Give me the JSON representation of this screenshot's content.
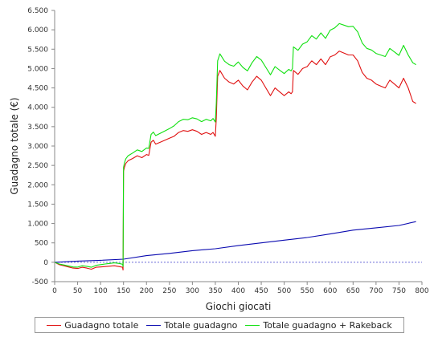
{
  "chart_data": {
    "type": "line",
    "title": "",
    "xlabel": "Giochi giocati",
    "ylabel": "Guadagno totale  (€)",
    "xlim": [
      0,
      800
    ],
    "ylim": [
      -500,
      6500
    ],
    "x_ticks": [
      0,
      50,
      100,
      150,
      200,
      250,
      300,
      350,
      400,
      450,
      500,
      550,
      600,
      650,
      700,
      750,
      800
    ],
    "x_tick_labels": [
      "0",
      "50",
      "100",
      "150",
      "200",
      "250",
      "300",
      "350",
      "400",
      "450",
      "500",
      "550",
      "600",
      "650",
      "700",
      "750",
      "800"
    ],
    "y_ticks": [
      -500,
      0,
      500,
      1000,
      1500,
      2000,
      2500,
      3000,
      3500,
      4000,
      4500,
      5000,
      5500,
      6000,
      6500
    ],
    "y_tick_labels": [
      "-500",
      "0",
      "500",
      "1.000",
      "1.500",
      "2.000",
      "2.500",
      "3.000",
      "3.500",
      "4.000",
      "4.500",
      "5.000",
      "5.500",
      "6.000",
      "6.500"
    ],
    "zero_line": true,
    "grid": false,
    "legend_position": "bottom",
    "series": [
      {
        "name": "Guadagno totale",
        "color": "#e01010",
        "x": [
          0,
          10,
          20,
          30,
          40,
          50,
          60,
          70,
          80,
          90,
          100,
          110,
          120,
          130,
          140,
          148,
          149,
          150,
          152,
          155,
          160,
          170,
          180,
          190,
          200,
          205,
          210,
          215,
          220,
          230,
          240,
          250,
          260,
          270,
          280,
          290,
          300,
          310,
          320,
          330,
          340,
          345,
          350,
          352,
          355,
          360,
          370,
          380,
          390,
          400,
          410,
          420,
          430,
          440,
          450,
          460,
          470,
          480,
          490,
          500,
          510,
          515,
          518,
          520,
          530,
          540,
          550,
          560,
          570,
          580,
          590,
          600,
          610,
          620,
          630,
          640,
          650,
          660,
          670,
          680,
          690,
          700,
          710,
          720,
          730,
          740,
          750,
          760,
          770,
          780,
          787
        ],
        "y": [
          0,
          -60,
          -90,
          -120,
          -150,
          -160,
          -130,
          -150,
          -180,
          -130,
          -120,
          -110,
          -100,
          -90,
          -110,
          -130,
          -200,
          2350,
          2450,
          2550,
          2620,
          2680,
          2750,
          2700,
          2780,
          2760,
          3100,
          3150,
          3050,
          3100,
          3150,
          3200,
          3250,
          3350,
          3400,
          3380,
          3420,
          3380,
          3300,
          3350,
          3300,
          3350,
          3250,
          3700,
          4800,
          4950,
          4750,
          4650,
          4600,
          4700,
          4550,
          4450,
          4650,
          4800,
          4700,
          4500,
          4300,
          4500,
          4400,
          4300,
          4400,
          4350,
          4400,
          4950,
          4850,
          5000,
          5050,
          5200,
          5100,
          5250,
          5100,
          5300,
          5350,
          5450,
          5400,
          5350,
          5350,
          5200,
          4900,
          4750,
          4700,
          4600,
          4550,
          4500,
          4700,
          4600,
          4500,
          4750,
          4500,
          4150,
          4100
        ]
      },
      {
        "name": "Totale guadagno",
        "color": "#0a0ab0",
        "x": [
          0,
          50,
          100,
          150,
          200,
          250,
          300,
          350,
          400,
          450,
          500,
          550,
          600,
          650,
          700,
          750,
          787
        ],
        "y": [
          0,
          30,
          50,
          80,
          170,
          230,
          300,
          350,
          430,
          500,
          570,
          640,
          730,
          830,
          890,
          950,
          1050
        ]
      },
      {
        "name": "Totale guadagno + Rakeback",
        "color": "#10e010",
        "x": [
          0,
          10,
          20,
          30,
          40,
          50,
          60,
          70,
          80,
          90,
          100,
          110,
          120,
          130,
          140,
          148,
          149,
          150,
          152,
          155,
          160,
          170,
          180,
          190,
          200,
          205,
          210,
          215,
          220,
          230,
          240,
          250,
          260,
          270,
          280,
          290,
          300,
          310,
          320,
          330,
          340,
          345,
          350,
          352,
          355,
          360,
          370,
          380,
          390,
          400,
          410,
          420,
          430,
          440,
          450,
          460,
          470,
          480,
          490,
          500,
          510,
          515,
          518,
          520,
          530,
          540,
          550,
          560,
          570,
          580,
          590,
          600,
          610,
          620,
          630,
          640,
          650,
          660,
          670,
          680,
          690,
          700,
          710,
          720,
          730,
          740,
          750,
          760,
          770,
          780,
          787
        ],
        "y": [
          0,
          -45,
          -70,
          -95,
          -120,
          -125,
          -90,
          -105,
          -130,
          -80,
          -60,
          -45,
          -30,
          -15,
          -30,
          -50,
          -110,
          2450,
          2560,
          2670,
          2750,
          2820,
          2900,
          2860,
          2950,
          2940,
          3300,
          3360,
          3270,
          3330,
          3390,
          3450,
          3520,
          3630,
          3690,
          3680,
          3730,
          3700,
          3630,
          3690,
          3650,
          3710,
          3620,
          4100,
          5200,
          5380,
          5190,
          5100,
          5060,
          5170,
          5030,
          4940,
          5150,
          5310,
          5220,
          5030,
          4840,
          5050,
          4960,
          4870,
          4980,
          4940,
          5000,
          5560,
          5470,
          5630,
          5690,
          5850,
          5760,
          5920,
          5780,
          5990,
          6050,
          6160,
          6120,
          6080,
          6090,
          5950,
          5660,
          5520,
          5480,
          5390,
          5350,
          5310,
          5520,
          5430,
          5340,
          5600,
          5350,
          5150,
          5100
        ]
      }
    ]
  }
}
